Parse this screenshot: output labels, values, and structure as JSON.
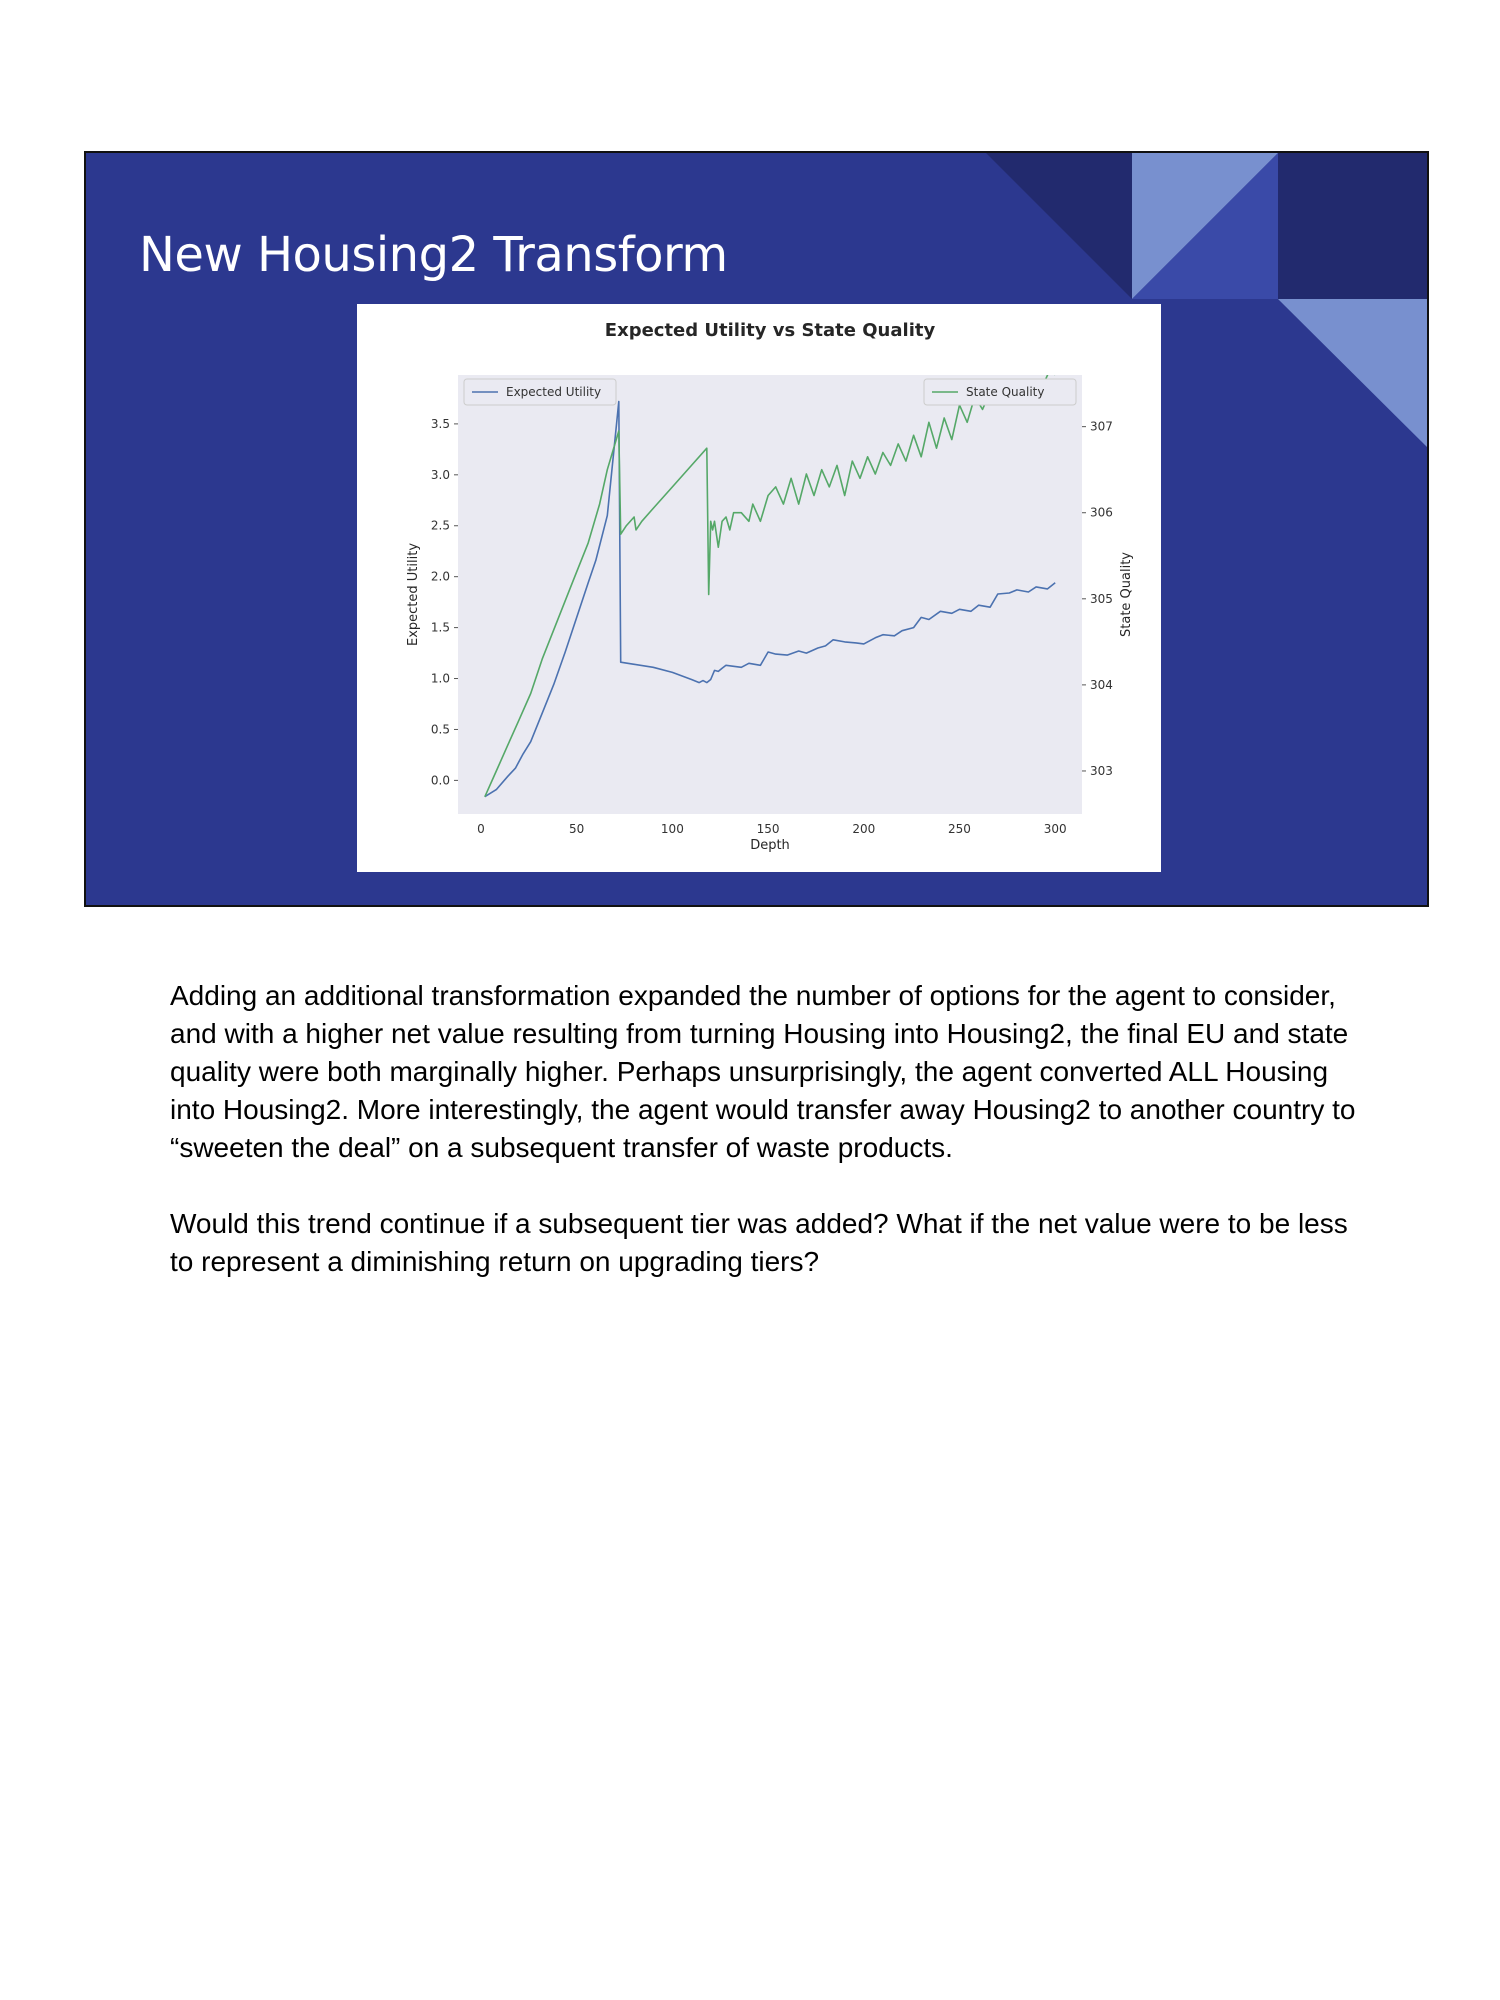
{
  "slide": {
    "title": "New Housing2 Transform",
    "colors": {
      "background": "#2c388f",
      "dark_shape": "#222a6e",
      "light_shape": "#7890cf",
      "mid_shape": "#3a4aa8"
    }
  },
  "chart_data": {
    "type": "line",
    "title": "Expected Utility vs State Quality",
    "xlabel": "Depth",
    "ylabel": "Expected Utility",
    "y2label": "State Quality",
    "xlim": [
      -12,
      314
    ],
    "ylim": [
      -0.33,
      3.98
    ],
    "y2lim": [
      302.5,
      307.6
    ],
    "xticks": [
      "0",
      "50",
      "100",
      "150",
      "200",
      "250",
      "300"
    ],
    "yticks": [
      "0.0",
      "0.5",
      "1.0",
      "1.5",
      "2.0",
      "2.5",
      "3.0",
      "3.5"
    ],
    "y2ticks": [
      "303",
      "304",
      "305",
      "306",
      "307"
    ],
    "grid": false,
    "legend": [
      "top-left",
      "top-right"
    ],
    "series": [
      {
        "name": "Expected Utility",
        "axis": "left",
        "color": "#4c72b0",
        "x": [
          2,
          8,
          14,
          18,
          22,
          26,
          32,
          38,
          44,
          50,
          56,
          60,
          66,
          72,
          73,
          80,
          90,
          100,
          110,
          114,
          116,
          118,
          120,
          122,
          124,
          126,
          128,
          132,
          136,
          140,
          146,
          150,
          154,
          160,
          166,
          170,
          176,
          180,
          184,
          190,
          196,
          200,
          206,
          210,
          216,
          220,
          226,
          230,
          234,
          240,
          246,
          250,
          256,
          260,
          266,
          270,
          276,
          280,
          286,
          290,
          296,
          300
        ],
        "y": [
          -0.16,
          -0.09,
          0.04,
          0.12,
          0.26,
          0.38,
          0.66,
          0.94,
          1.26,
          1.6,
          1.94,
          2.16,
          2.6,
          3.72,
          1.16,
          1.14,
          1.11,
          1.06,
          0.99,
          0.96,
          0.98,
          0.96,
          0.99,
          1.08,
          1.07,
          1.1,
          1.13,
          1.12,
          1.11,
          1.15,
          1.13,
          1.26,
          1.24,
          1.23,
          1.27,
          1.25,
          1.3,
          1.32,
          1.38,
          1.36,
          1.35,
          1.34,
          1.4,
          1.43,
          1.42,
          1.47,
          1.5,
          1.6,
          1.58,
          1.66,
          1.64,
          1.68,
          1.66,
          1.72,
          1.7,
          1.83,
          1.84,
          1.87,
          1.85,
          1.9,
          1.88,
          1.94
        ]
      },
      {
        "name": "State Quality",
        "axis": "right",
        "color": "#55a868",
        "x": [
          2,
          8,
          14,
          20,
          26,
          32,
          40,
          48,
          56,
          62,
          66,
          72,
          73,
          76,
          80,
          81,
          84,
          90,
          100,
          110,
          118,
          119,
          120,
          121,
          122,
          124,
          126,
          128,
          130,
          132,
          136,
          140,
          142,
          146,
          150,
          154,
          158,
          162,
          166,
          170,
          174,
          178,
          182,
          186,
          190,
          194,
          198,
          202,
          206,
          210,
          214,
          218,
          222,
          226,
          230,
          234,
          238,
          242,
          246,
          250,
          254,
          258,
          262,
          266,
          270,
          274,
          278,
          282,
          286,
          290,
          294,
          298,
          300
        ],
        "y": [
          302.7,
          303,
          303.3,
          303.6,
          303.9,
          304.3,
          304.75,
          305.2,
          305.65,
          306.1,
          306.5,
          306.95,
          305.75,
          305.85,
          305.95,
          305.8,
          305.9,
          306.05,
          306.3,
          306.55,
          306.75,
          305.05,
          305.9,
          305.8,
          305.9,
          305.6,
          305.9,
          305.95,
          305.8,
          306,
          306,
          305.9,
          306.1,
          305.9,
          306.2,
          306.3,
          306.1,
          306.4,
          306.1,
          306.45,
          306.2,
          306.5,
          306.3,
          306.55,
          306.2,
          306.6,
          306.4,
          306.65,
          306.45,
          306.7,
          306.55,
          306.8,
          306.6,
          306.9,
          306.65,
          307.05,
          306.75,
          307.1,
          306.85,
          307.25,
          307.05,
          307.35,
          307.2,
          307.4,
          307.35,
          307.5,
          307.4,
          307.55,
          307.45,
          307.55,
          307.5,
          307.7,
          307.6
        ]
      }
    ]
  },
  "notes": {
    "paragraphs": [
      "Adding an additional transformation expanded the number of options for the agent to consider, and with a higher net value resulting from turning Housing into Housing2, the final EU and state quality were both marginally higher. Perhaps unsurprisingly, the agent converted ALL Housing into Housing2. More interestingly, the agent would transfer away Housing2 to another country to “sweeten the deal” on a subsequent transfer of waste products.",
      "Would this trend continue if a subsequent tier was added? What if the net value were to be less to represent a diminishing return on upgrading tiers?"
    ]
  }
}
